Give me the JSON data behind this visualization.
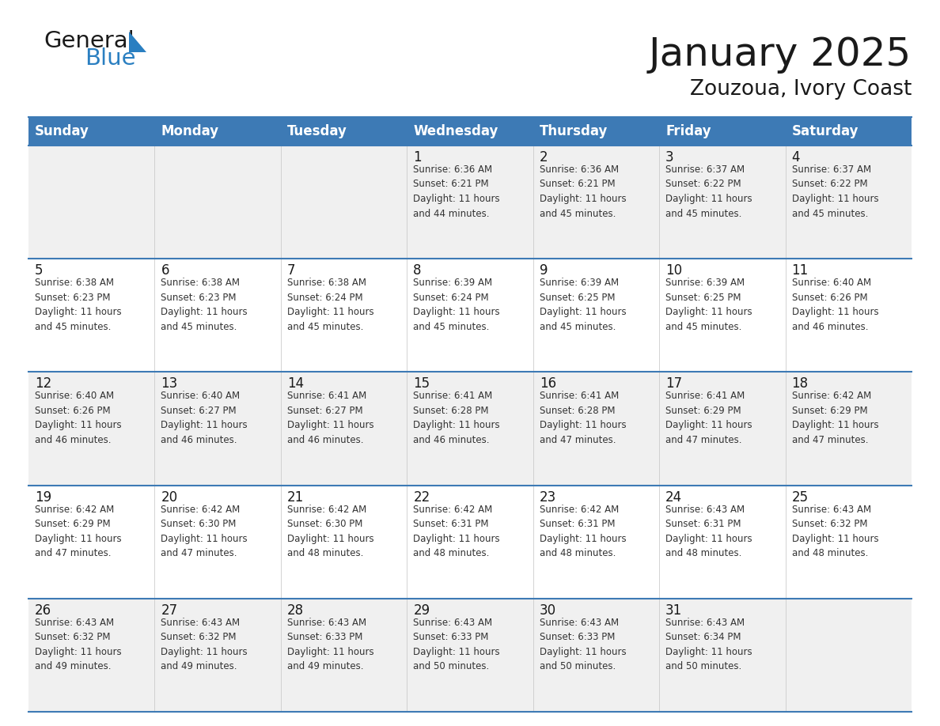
{
  "title": "January 2025",
  "subtitle": "Zouzoua, Ivory Coast",
  "header_bg": "#3D7AB5",
  "header_text_color": "#FFFFFF",
  "weekdays": [
    "Sunday",
    "Monday",
    "Tuesday",
    "Wednesday",
    "Thursday",
    "Friday",
    "Saturday"
  ],
  "row_bg_odd": "#F0F0F0",
  "row_bg_even": "#FFFFFF",
  "cell_border_color": "#3D7AB5",
  "day_number_color": "#1A1A1A",
  "day_info_color": "#333333",
  "calendar": [
    [
      {
        "day": "",
        "info": ""
      },
      {
        "day": "",
        "info": ""
      },
      {
        "day": "",
        "info": ""
      },
      {
        "day": "1",
        "info": "Sunrise: 6:36 AM\nSunset: 6:21 PM\nDaylight: 11 hours\nand 44 minutes."
      },
      {
        "day": "2",
        "info": "Sunrise: 6:36 AM\nSunset: 6:21 PM\nDaylight: 11 hours\nand 45 minutes."
      },
      {
        "day": "3",
        "info": "Sunrise: 6:37 AM\nSunset: 6:22 PM\nDaylight: 11 hours\nand 45 minutes."
      },
      {
        "day": "4",
        "info": "Sunrise: 6:37 AM\nSunset: 6:22 PM\nDaylight: 11 hours\nand 45 minutes."
      }
    ],
    [
      {
        "day": "5",
        "info": "Sunrise: 6:38 AM\nSunset: 6:23 PM\nDaylight: 11 hours\nand 45 minutes."
      },
      {
        "day": "6",
        "info": "Sunrise: 6:38 AM\nSunset: 6:23 PM\nDaylight: 11 hours\nand 45 minutes."
      },
      {
        "day": "7",
        "info": "Sunrise: 6:38 AM\nSunset: 6:24 PM\nDaylight: 11 hours\nand 45 minutes."
      },
      {
        "day": "8",
        "info": "Sunrise: 6:39 AM\nSunset: 6:24 PM\nDaylight: 11 hours\nand 45 minutes."
      },
      {
        "day": "9",
        "info": "Sunrise: 6:39 AM\nSunset: 6:25 PM\nDaylight: 11 hours\nand 45 minutes."
      },
      {
        "day": "10",
        "info": "Sunrise: 6:39 AM\nSunset: 6:25 PM\nDaylight: 11 hours\nand 45 minutes."
      },
      {
        "day": "11",
        "info": "Sunrise: 6:40 AM\nSunset: 6:26 PM\nDaylight: 11 hours\nand 46 minutes."
      }
    ],
    [
      {
        "day": "12",
        "info": "Sunrise: 6:40 AM\nSunset: 6:26 PM\nDaylight: 11 hours\nand 46 minutes."
      },
      {
        "day": "13",
        "info": "Sunrise: 6:40 AM\nSunset: 6:27 PM\nDaylight: 11 hours\nand 46 minutes."
      },
      {
        "day": "14",
        "info": "Sunrise: 6:41 AM\nSunset: 6:27 PM\nDaylight: 11 hours\nand 46 minutes."
      },
      {
        "day": "15",
        "info": "Sunrise: 6:41 AM\nSunset: 6:28 PM\nDaylight: 11 hours\nand 46 minutes."
      },
      {
        "day": "16",
        "info": "Sunrise: 6:41 AM\nSunset: 6:28 PM\nDaylight: 11 hours\nand 47 minutes."
      },
      {
        "day": "17",
        "info": "Sunrise: 6:41 AM\nSunset: 6:29 PM\nDaylight: 11 hours\nand 47 minutes."
      },
      {
        "day": "18",
        "info": "Sunrise: 6:42 AM\nSunset: 6:29 PM\nDaylight: 11 hours\nand 47 minutes."
      }
    ],
    [
      {
        "day": "19",
        "info": "Sunrise: 6:42 AM\nSunset: 6:29 PM\nDaylight: 11 hours\nand 47 minutes."
      },
      {
        "day": "20",
        "info": "Sunrise: 6:42 AM\nSunset: 6:30 PM\nDaylight: 11 hours\nand 47 minutes."
      },
      {
        "day": "21",
        "info": "Sunrise: 6:42 AM\nSunset: 6:30 PM\nDaylight: 11 hours\nand 48 minutes."
      },
      {
        "day": "22",
        "info": "Sunrise: 6:42 AM\nSunset: 6:31 PM\nDaylight: 11 hours\nand 48 minutes."
      },
      {
        "day": "23",
        "info": "Sunrise: 6:42 AM\nSunset: 6:31 PM\nDaylight: 11 hours\nand 48 minutes."
      },
      {
        "day": "24",
        "info": "Sunrise: 6:43 AM\nSunset: 6:31 PM\nDaylight: 11 hours\nand 48 minutes."
      },
      {
        "day": "25",
        "info": "Sunrise: 6:43 AM\nSunset: 6:32 PM\nDaylight: 11 hours\nand 48 minutes."
      }
    ],
    [
      {
        "day": "26",
        "info": "Sunrise: 6:43 AM\nSunset: 6:32 PM\nDaylight: 11 hours\nand 49 minutes."
      },
      {
        "day": "27",
        "info": "Sunrise: 6:43 AM\nSunset: 6:32 PM\nDaylight: 11 hours\nand 49 minutes."
      },
      {
        "day": "28",
        "info": "Sunrise: 6:43 AM\nSunset: 6:33 PM\nDaylight: 11 hours\nand 49 minutes."
      },
      {
        "day": "29",
        "info": "Sunrise: 6:43 AM\nSunset: 6:33 PM\nDaylight: 11 hours\nand 50 minutes."
      },
      {
        "day": "30",
        "info": "Sunrise: 6:43 AM\nSunset: 6:33 PM\nDaylight: 11 hours\nand 50 minutes."
      },
      {
        "day": "31",
        "info": "Sunrise: 6:43 AM\nSunset: 6:34 PM\nDaylight: 11 hours\nand 50 minutes."
      },
      {
        "day": "",
        "info": ""
      }
    ]
  ],
  "logo_general_color": "#1A1A1A",
  "logo_blue_color": "#2A7FC1",
  "logo_triangle_color": "#2A7FC1",
  "figwidth": 11.88,
  "figheight": 9.18,
  "dpi": 100
}
